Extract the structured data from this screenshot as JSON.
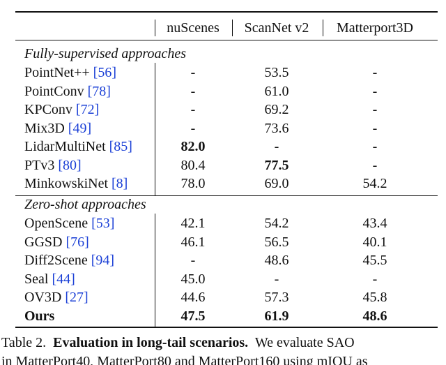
{
  "table": {
    "header": [
      "nuScenes",
      "ScanNet v2",
      "Matterport3D"
    ],
    "sections": [
      {
        "title": "Fully-supervised approaches",
        "rows": [
          {
            "method": "PointNet++",
            "ref": "[56]",
            "values": [
              "-",
              "53.5",
              "-"
            ]
          },
          {
            "method": "PointConv",
            "ref": "[78]",
            "values": [
              "-",
              "61.0",
              "-"
            ]
          },
          {
            "method": "KPConv",
            "ref": "[72]",
            "values": [
              "-",
              "69.2",
              "-"
            ]
          },
          {
            "method": "Mix3D",
            "ref": "[49]",
            "values": [
              "-",
              "73.6",
              "-"
            ]
          },
          {
            "method": "LidarMultiNet",
            "ref": "[85]",
            "values": [
              "82.0",
              "-",
              "-"
            ],
            "bold": [
              0
            ]
          },
          {
            "method": "PTv3",
            "ref": "[80]",
            "values": [
              "80.4",
              "77.5",
              "-"
            ],
            "bold": [
              1
            ]
          },
          {
            "method": "MinkowskiNet",
            "ref": "[8]",
            "values": [
              "78.0",
              "69.0",
              "54.2"
            ]
          }
        ]
      },
      {
        "title": "Zero-shot approaches",
        "rows": [
          {
            "method": "OpenScene",
            "ref": "[53]",
            "values": [
              "42.1",
              "54.2",
              "43.4"
            ]
          },
          {
            "method": "GGSD",
            "ref": "[76]",
            "values": [
              "46.1",
              "56.5",
              "40.1"
            ]
          },
          {
            "method": "Diff2Scene",
            "ref": "[94]",
            "values": [
              "-",
              "48.6",
              "45.5"
            ]
          },
          {
            "method": "Seal",
            "ref": "[44]",
            "values": [
              "45.0",
              "-",
              "-"
            ]
          },
          {
            "method": "OV3D",
            "ref": "[27]",
            "values": [
              "44.6",
              "57.3",
              "45.8"
            ]
          },
          {
            "method": "Ours",
            "values": [
              "47.5",
              "61.9",
              "48.6"
            ],
            "bold": [
              0,
              1,
              2
            ],
            "method_bold": true
          }
        ]
      }
    ]
  },
  "caption": {
    "label": "Table 2.",
    "title": "Evaluation in long-tail scenarios.",
    "line1": "We evaluate SAO",
    "line2": "in MatterPort40, MatterPort80 and MatterPort160 using mIOU as"
  }
}
